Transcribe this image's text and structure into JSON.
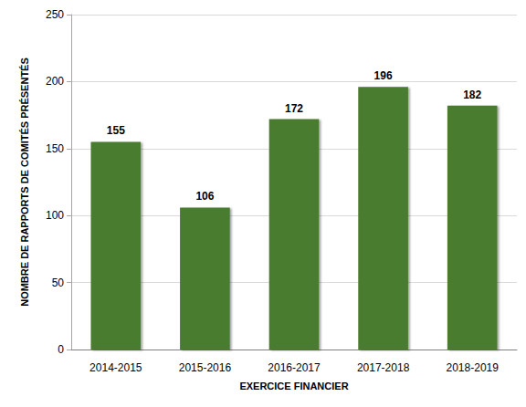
{
  "chart_data": {
    "type": "bar",
    "x_label": "EXERCICE FINANCIER",
    "y_label": "NOMBRE DE RAPPORTS DE COMITÉS PRÉSENTÉS",
    "categories": [
      "2014-2015",
      "2015-2016",
      "2016-2017",
      "2017-2018",
      "2018-2019"
    ],
    "values": [
      155,
      106,
      172,
      196,
      182
    ],
    "color": "#4a7c2f",
    "ylim": [
      0,
      250
    ],
    "yticks": [
      0,
      50,
      100,
      150,
      200,
      250
    ],
    "grid": true,
    "data_labels": true
  }
}
